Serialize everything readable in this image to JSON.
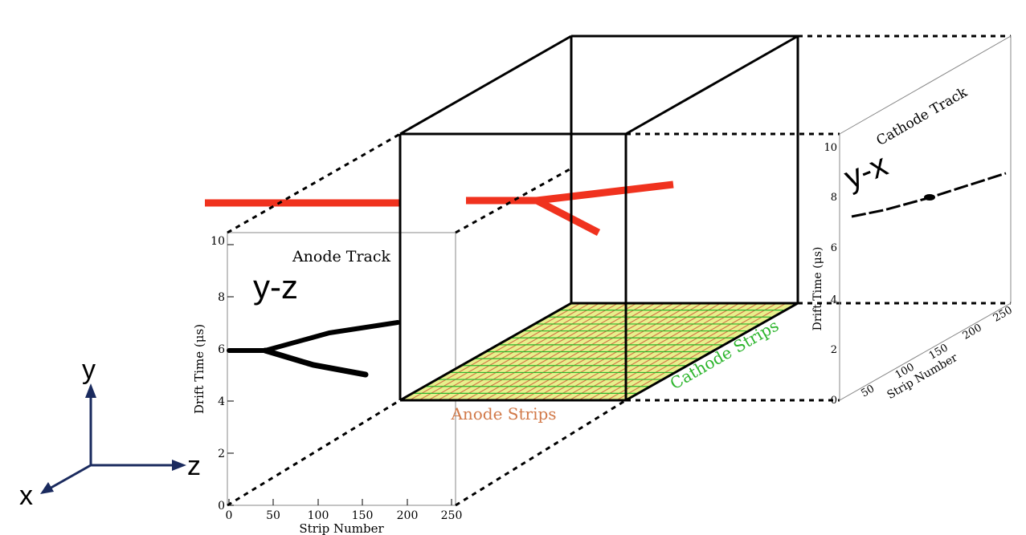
{
  "axes": {
    "x_label": "x",
    "y_label": "y",
    "z_label": "z",
    "color": "#1a2a5e"
  },
  "anode_panel": {
    "title": "Anode Track",
    "projection": "y-z",
    "ylabel": "Drift Time (μs)",
    "xlabel": "Strip Number",
    "yticks": [
      "0",
      "2",
      "4",
      "6",
      "8",
      "10"
    ],
    "xticks": [
      "0",
      "50",
      "100",
      "150",
      "200",
      "250"
    ]
  },
  "cathode_panel": {
    "title": "Cathode Track",
    "projection": "y-x",
    "ylabel": "Drift Time (μs)",
    "xlabel": "Strip Number",
    "yticks": [
      "0",
      "2",
      "4",
      "6",
      "8",
      "10"
    ],
    "xticks": [
      "50",
      "100",
      "150",
      "200",
      "250"
    ]
  },
  "detector": {
    "anode_strips_label": "Anode Strips",
    "cathode_strips_label": "Cathode Strips",
    "anode_color": "#d27a4a",
    "cathode_color": "#2db52d",
    "grid_fill": "#e8f08c",
    "track_color": "#f0321e"
  }
}
